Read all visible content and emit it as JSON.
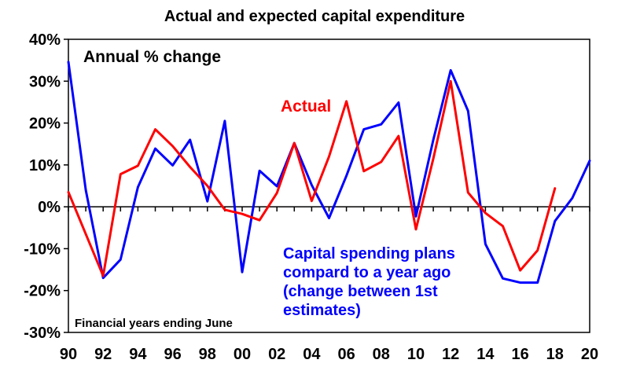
{
  "chart_data": {
    "type": "line",
    "title": "Actual and expected capital expenditure",
    "xlabel": "",
    "ylabel": "",
    "ylim": [
      -30,
      40
    ],
    "xlim": [
      1990,
      2020
    ],
    "y_ticks": [
      -30,
      -20,
      -10,
      0,
      10,
      20,
      30,
      40
    ],
    "y_tick_labels": [
      "-30%",
      "-20%",
      "-10%",
      "0%",
      "10%",
      "20%",
      "30%",
      "40%"
    ],
    "x_ticks": [
      1990,
      1992,
      1994,
      1996,
      1998,
      2000,
      2002,
      2004,
      2006,
      2008,
      2010,
      2012,
      2014,
      2016,
      2018,
      2020
    ],
    "x_tick_labels": [
      "90",
      "92",
      "94",
      "96",
      "98",
      "00",
      "02",
      "04",
      "06",
      "08",
      "10",
      "12",
      "14",
      "16",
      "18",
      "20"
    ],
    "grid": false,
    "annotations": {
      "units": "Annual % change",
      "footnote": "Financial years ending June",
      "actual_label": "Actual",
      "plans_label": [
        "Capital spending plans",
        "compard to a year ago",
        "(change between 1st",
        "estimates)"
      ]
    },
    "series": [
      {
        "name": "Actual",
        "color": "#ff0000",
        "x": [
          1990,
          1991,
          1992,
          1993,
          1994,
          1995,
          1996,
          1997,
          1998,
          1999,
          2000,
          2001,
          2002,
          2003,
          2004,
          2005,
          2006,
          2007,
          2008,
          2009,
          2010,
          2011,
          2012,
          2013,
          2014,
          2015,
          2016,
          2017,
          2018
        ],
        "values": [
          3.5,
          -6.5,
          -16.5,
          7.8,
          9.8,
          18.5,
          14.5,
          9.5,
          5.0,
          -0.7,
          -1.7,
          -3.2,
          3.3,
          15.2,
          1.4,
          12.0,
          25.2,
          8.5,
          10.7,
          16.9,
          -5.4,
          11.5,
          30.0,
          3.4,
          -1.5,
          -4.6,
          -15.2,
          -10.4,
          4.4
        ]
      },
      {
        "name": "Capital spending plans compard to a year ago (change between 1st estimates)",
        "color": "#0000ff",
        "x": [
          1990,
          1991,
          1992,
          1993,
          1994,
          1995,
          1996,
          1997,
          1998,
          1999,
          2000,
          2001,
          2002,
          2003,
          2004,
          2005,
          2006,
          2007,
          2008,
          2009,
          2010,
          2011,
          2012,
          2013,
          2014,
          2015,
          2016,
          2017,
          2018,
          2019,
          2020
        ],
        "values": [
          34.6,
          4.0,
          -17.0,
          -12.6,
          4.7,
          13.9,
          9.9,
          16.0,
          1.3,
          20.5,
          -15.6,
          8.6,
          4.9,
          15.2,
          5.2,
          -2.7,
          7.4,
          18.5,
          19.7,
          24.9,
          -2.3,
          16.0,
          32.6,
          22.9,
          -8.9,
          -17.1,
          -18.1,
          -18.1,
          -3.4,
          2.1,
          11.0
        ]
      }
    ]
  }
}
